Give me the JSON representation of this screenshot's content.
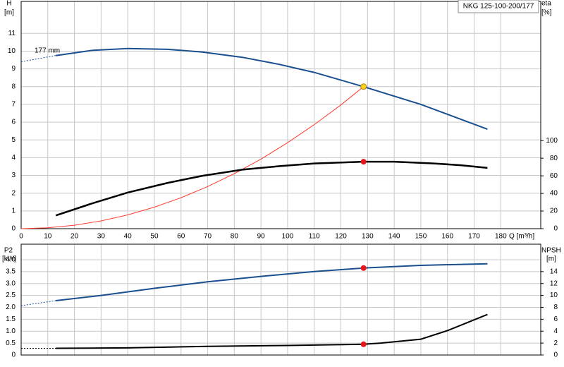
{
  "chart_data": [
    {
      "type": "line",
      "title": "NKG 125-100-200/177",
      "x_label": "Q [m³/h]",
      "y_label": "H",
      "y_unit": "[m]",
      "y2_label": "eta",
      "y2_unit": "[%]",
      "xlim": [
        0,
        195
      ],
      "xticks": [
        0,
        10,
        20,
        30,
        40,
        50,
        60,
        70,
        80,
        90,
        100,
        110,
        120,
        130,
        140,
        150,
        160,
        170,
        180
      ],
      "show_xtick_labels": true,
      "ylim": [
        0,
        12.8
      ],
      "yticks": [
        0,
        1,
        2,
        3,
        4,
        5,
        6,
        7,
        8,
        9,
        10,
        11
      ],
      "y2lim": [
        0,
        258
      ],
      "y2ticks": [
        0,
        20,
        40,
        60,
        80,
        100
      ],
      "grid": true,
      "series": [
        {
          "name": "177 mm",
          "color": "#1a4f8f",
          "width": 2,
          "x": [
            13,
            27,
            40,
            55,
            68,
            83,
            97,
            110,
            128.5,
            150,
            175
          ],
          "values": [
            9.75,
            10.05,
            10.15,
            10.1,
            9.95,
            9.65,
            9.25,
            8.8,
            8.0,
            7.0,
            5.6
          ]
        },
        {
          "color": "#1a4f8f",
          "width": 1,
          "dash": true,
          "x": [
            0,
            13
          ],
          "values": [
            9.4,
            9.75
          ]
        },
        {
          "color": "#ff3b30",
          "width": 1,
          "x": [
            0,
            10,
            20,
            30,
            40,
            50,
            60,
            70,
            80,
            90,
            100,
            110,
            120,
            128.5
          ],
          "values": [
            0,
            0.048,
            0.194,
            0.436,
            0.775,
            1.211,
            1.744,
            2.374,
            3.1,
            3.92,
            4.84,
            5.86,
            6.97,
            8.0
          ]
        },
        {
          "color": "#000000",
          "width": 2.5,
          "axis": "y2",
          "x": [
            13,
            27,
            40,
            55,
            68,
            83,
            97,
            110,
            128.5,
            140,
            155,
            165,
            175
          ],
          "values": [
            15,
            29,
            41,
            52,
            60,
            67,
            71,
            74,
            76,
            76,
            74,
            72,
            69
          ]
        },
        {
          "style": "marker",
          "color": "#ffd21f",
          "x": [
            128.5
          ],
          "values": [
            8.0
          ]
        },
        {
          "style": "marker",
          "color": "#e8141c",
          "axis": "y2",
          "x": [
            128.5
          ],
          "values": [
            76
          ]
        }
      ]
    },
    {
      "type": "line",
      "y_label": "P2",
      "y_unit": "[kW]",
      "y2_label": "NPSH",
      "y2_unit": "[m]",
      "xlim": [
        0,
        195
      ],
      "xticks": [
        0,
        10,
        20,
        30,
        40,
        50,
        60,
        70,
        80,
        90,
        100,
        110,
        120,
        130,
        140,
        150,
        160,
        170,
        180
      ],
      "show_xtick_labels": false,
      "ylim": [
        0,
        4.65
      ],
      "yticks": [
        0,
        0.5,
        {
          "value": 1,
          "label": "1.0"
        },
        1.5,
        {
          "value": 2,
          "label": "2.0"
        },
        2.5,
        {
          "value": 3,
          "label": "3.0"
        },
        3.5,
        {
          "value": 4,
          "label": "4.0"
        }
      ],
      "y2lim": [
        0,
        18.6
      ],
      "y2ticks": [
        0,
        2,
        4,
        6,
        8,
        10,
        12,
        14
      ],
      "grid": true,
      "series": [
        {
          "color": "#1a4f8f",
          "width": 2,
          "x": [
            13,
            30,
            50,
            70,
            90,
            110,
            128.5,
            150,
            175
          ],
          "values": [
            2.28,
            2.5,
            2.8,
            3.07,
            3.3,
            3.5,
            3.65,
            3.76,
            3.83
          ]
        },
        {
          "color": "#1a4f8f",
          "width": 1,
          "dash": true,
          "x": [
            0,
            13
          ],
          "values": [
            2.07,
            2.28
          ]
        },
        {
          "color": "#000000",
          "width": 2,
          "axis": "y2",
          "x": [
            13,
            40,
            70,
            100,
            128.5,
            135,
            150,
            160,
            175
          ],
          "values": [
            1.12,
            1.2,
            1.45,
            1.6,
            1.8,
            2.0,
            2.65,
            4.1,
            6.8
          ]
        },
        {
          "color": "#000000",
          "width": 1,
          "dash": true,
          "axis": "y2",
          "x": [
            0,
            13
          ],
          "values": [
            1.12,
            1.12
          ]
        },
        {
          "style": "marker",
          "color": "#e8141c",
          "x": [
            128.5
          ],
          "values": [
            3.65
          ]
        },
        {
          "style": "marker",
          "color": "#e8141c",
          "axis": "y2",
          "x": [
            128.5
          ],
          "values": [
            1.8
          ]
        }
      ]
    }
  ]
}
